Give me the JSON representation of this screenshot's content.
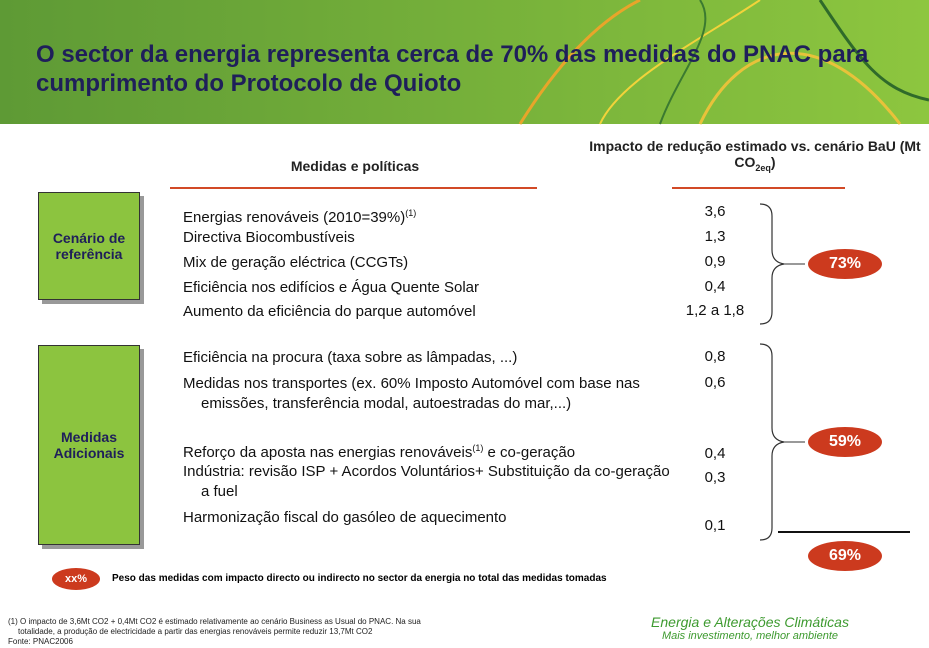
{
  "header": {
    "title": "O sector da energia representa cerca de 70% das medidas do PNAC para cumprimento do Protocolo de Quioto"
  },
  "columns": {
    "measures": "Medidas e políticas",
    "impact": "Impacto de redução estimado vs. cenário BaU (Mt CO",
    "impact_sub": "2eq",
    "impact_end": ")"
  },
  "groups": [
    {
      "label": "Cenário de referência",
      "share": "73%",
      "rows": [
        {
          "text": "Energias renováveis (2010=39%)",
          "note": "(1)",
          "value": "3,6"
        },
        {
          "text": "Directiva Biocombustíveis",
          "value": "1,3"
        },
        {
          "text": "Mix de geração eléctrica (CCGTs)",
          "value": "0,9"
        },
        {
          "text": "Eficiência nos edifícios e Água Quente Solar",
          "value": "0,4"
        },
        {
          "text": "Aumento da eficiência do parque automóvel",
          "value": "1,2 a 1,8"
        }
      ]
    },
    {
      "label": "Medidas Adicionais",
      "share": "59%",
      "rows": [
        {
          "text": "Eficiência na procura (taxa sobre as lâmpadas, ...)",
          "value": "0,8"
        },
        {
          "text": "Medidas nos transportes (ex. 60% Imposto Automóvel com base nas emissões, transferência modal, autoestradas do mar,...)",
          "value": "0,6"
        },
        {
          "text": "Reforço da aposta nas energias renováveis",
          "note": "(1)",
          "rest": " e co-geração",
          "value": "0,4"
        },
        {
          "text": "Indústria: revisão ISP + Acordos Voluntários+ Substituição da co-geração a fuel",
          "value": "0,3"
        },
        {
          "text": "Harmonização fiscal do gasóleo de aquecimento",
          "value": "0,1"
        }
      ]
    }
  ],
  "total": "69%",
  "legend": {
    "badge": "xx%",
    "text": "Peso das medidas com impacto directo ou indirecto no sector da energia no total das medidas tomadas"
  },
  "footnote": {
    "line1": "(1) O impacto de 3,6Mt CO2 + 0,4Mt CO2 é estimado relativamente ao cenário Business as Usual do PNAC. Na sua",
    "line2": "totalidade, a produção de electricidade a partir das energias renováveis permite reduzir 13,7Mt CO2",
    "source": "Fonte: PNAC2006"
  },
  "brand": {
    "line1": "Energia e Alterações Climáticas",
    "line2": "Mais investimento, melhor ambiente"
  }
}
